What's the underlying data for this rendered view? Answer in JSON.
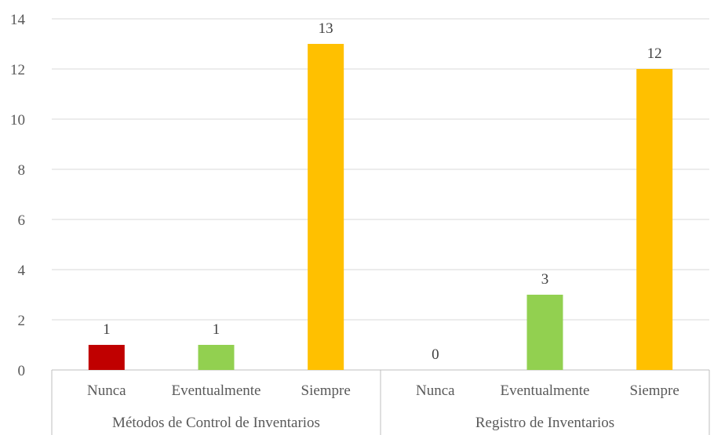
{
  "chart_data": {
    "type": "bar",
    "ylim": [
      0,
      14
    ],
    "yticks": [
      0,
      2,
      4,
      6,
      8,
      10,
      12,
      14
    ],
    "grid": true,
    "groups": [
      {
        "label": "Métodos de Control de Inventarios",
        "bars": [
          {
            "category": "Nunca",
            "value": 1,
            "color": "#c00000"
          },
          {
            "category": "Eventualmente",
            "value": 1,
            "color": "#92d050"
          },
          {
            "category": "Siempre",
            "value": 13,
            "color": "#ffc000"
          }
        ]
      },
      {
        "label": "Registro de Inventarios",
        "bars": [
          {
            "category": "Nunca",
            "value": 0,
            "color": "#c00000"
          },
          {
            "category": "Eventualmente",
            "value": 3,
            "color": "#92d050"
          },
          {
            "category": "Siempre",
            "value": 12,
            "color": "#ffc000"
          }
        ]
      }
    ]
  }
}
